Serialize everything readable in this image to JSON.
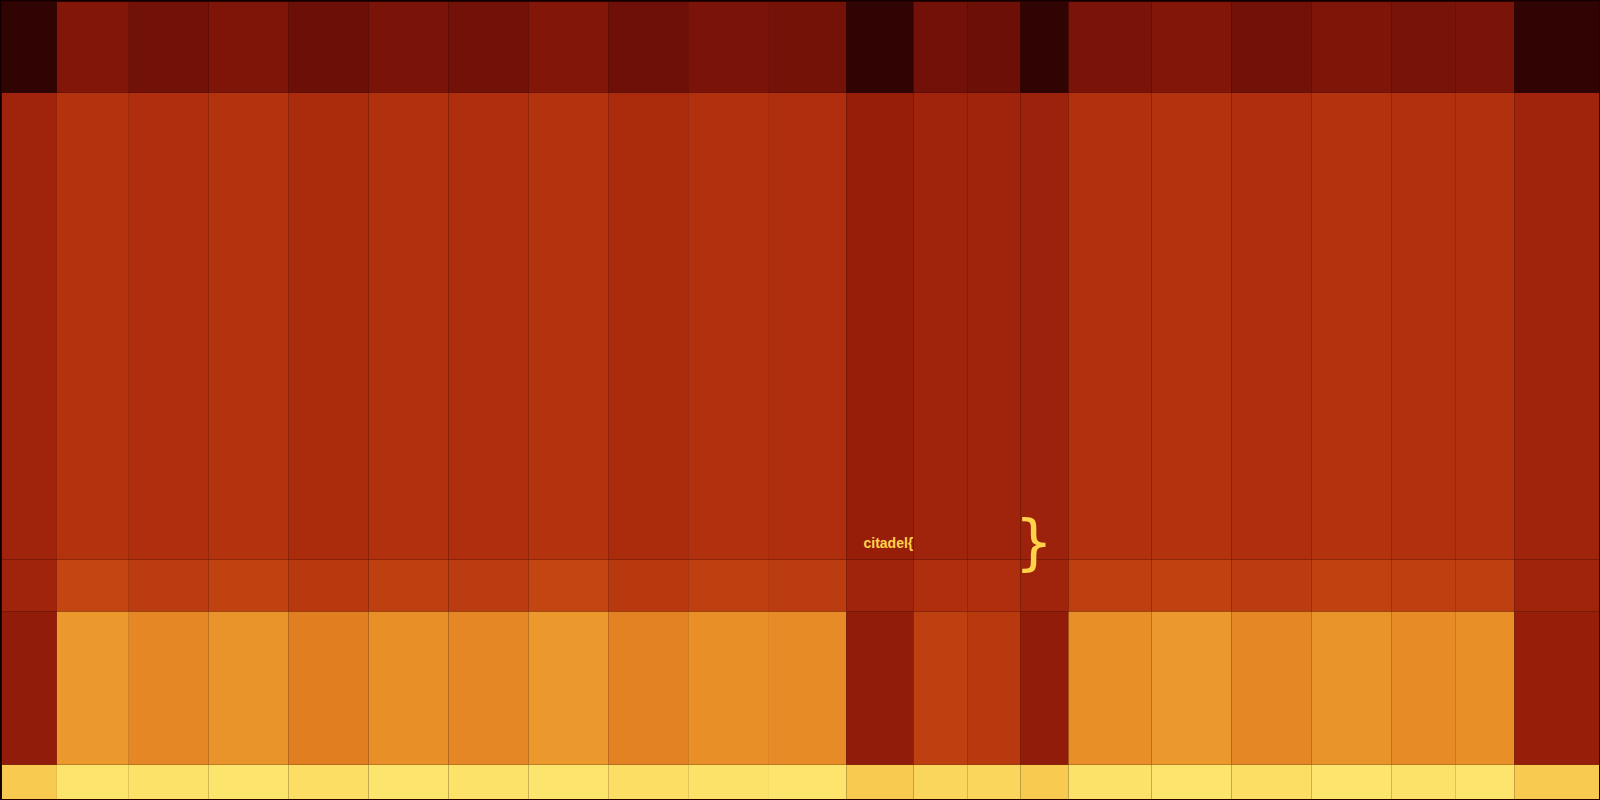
{
  "chart_data": {
    "type": "heatmap",
    "x": [
      0,
      3.5,
      8,
      13,
      18,
      23,
      28,
      33,
      38,
      43,
      48,
      52.9,
      57.1,
      60.5,
      63.8,
      66.8,
      72,
      77,
      82,
      87,
      91,
      94.7,
      100
    ],
    "y": [
      0,
      4.3,
      23.5,
      30,
      88.5,
      100
    ],
    "cells": [
      [
        0.9,
        0.97,
        0.96,
        0.97,
        0.95,
        0.97,
        0.96,
        0.97,
        0.95,
        0.96,
        0.97,
        0.9,
        0.93,
        0.93,
        0.9,
        0.96,
        0.97,
        0.95,
        0.97,
        0.96,
        0.97,
        0.9
      ],
      [
        0.4,
        0.78,
        0.74,
        0.77,
        0.72,
        0.76,
        0.74,
        0.78,
        0.73,
        0.76,
        0.75,
        0.4,
        0.56,
        0.54,
        0.4,
        0.76,
        0.78,
        0.74,
        0.77,
        0.75,
        0.76,
        0.42
      ],
      [
        0.45,
        0.58,
        0.55,
        0.57,
        0.54,
        0.56,
        0.55,
        0.58,
        0.54,
        0.56,
        0.55,
        0.45,
        0.5,
        0.5,
        0.45,
        0.56,
        0.57,
        0.55,
        0.57,
        0.56,
        0.56,
        0.45
      ],
      [
        0.45,
        0.52,
        0.5,
        0.52,
        0.49,
        0.51,
        0.5,
        0.52,
        0.49,
        0.51,
        0.5,
        0.42,
        0.45,
        0.45,
        0.44,
        0.51,
        0.52,
        0.5,
        0.52,
        0.51,
        0.51,
        0.45
      ],
      [
        0.1,
        0.35,
        0.3,
        0.34,
        0.28,
        0.33,
        0.3,
        0.35,
        0.29,
        0.33,
        0.31,
        0.1,
        0.3,
        0.28,
        0.1,
        0.33,
        0.35,
        0.3,
        0.34,
        0.32,
        0.33,
        0.1
      ]
    ],
    "color_domain": [
      0,
      1
    ],
    "xlim": [
      0,
      100
    ],
    "ylim": [
      0,
      100
    ],
    "tick_labels": false,
    "annotations": [
      {
        "text": "citadel{",
        "x": 55.5,
        "y": 32.1
      },
      {
        "text": "}",
        "x": 64.6,
        "y": 32.1
      }
    ]
  }
}
